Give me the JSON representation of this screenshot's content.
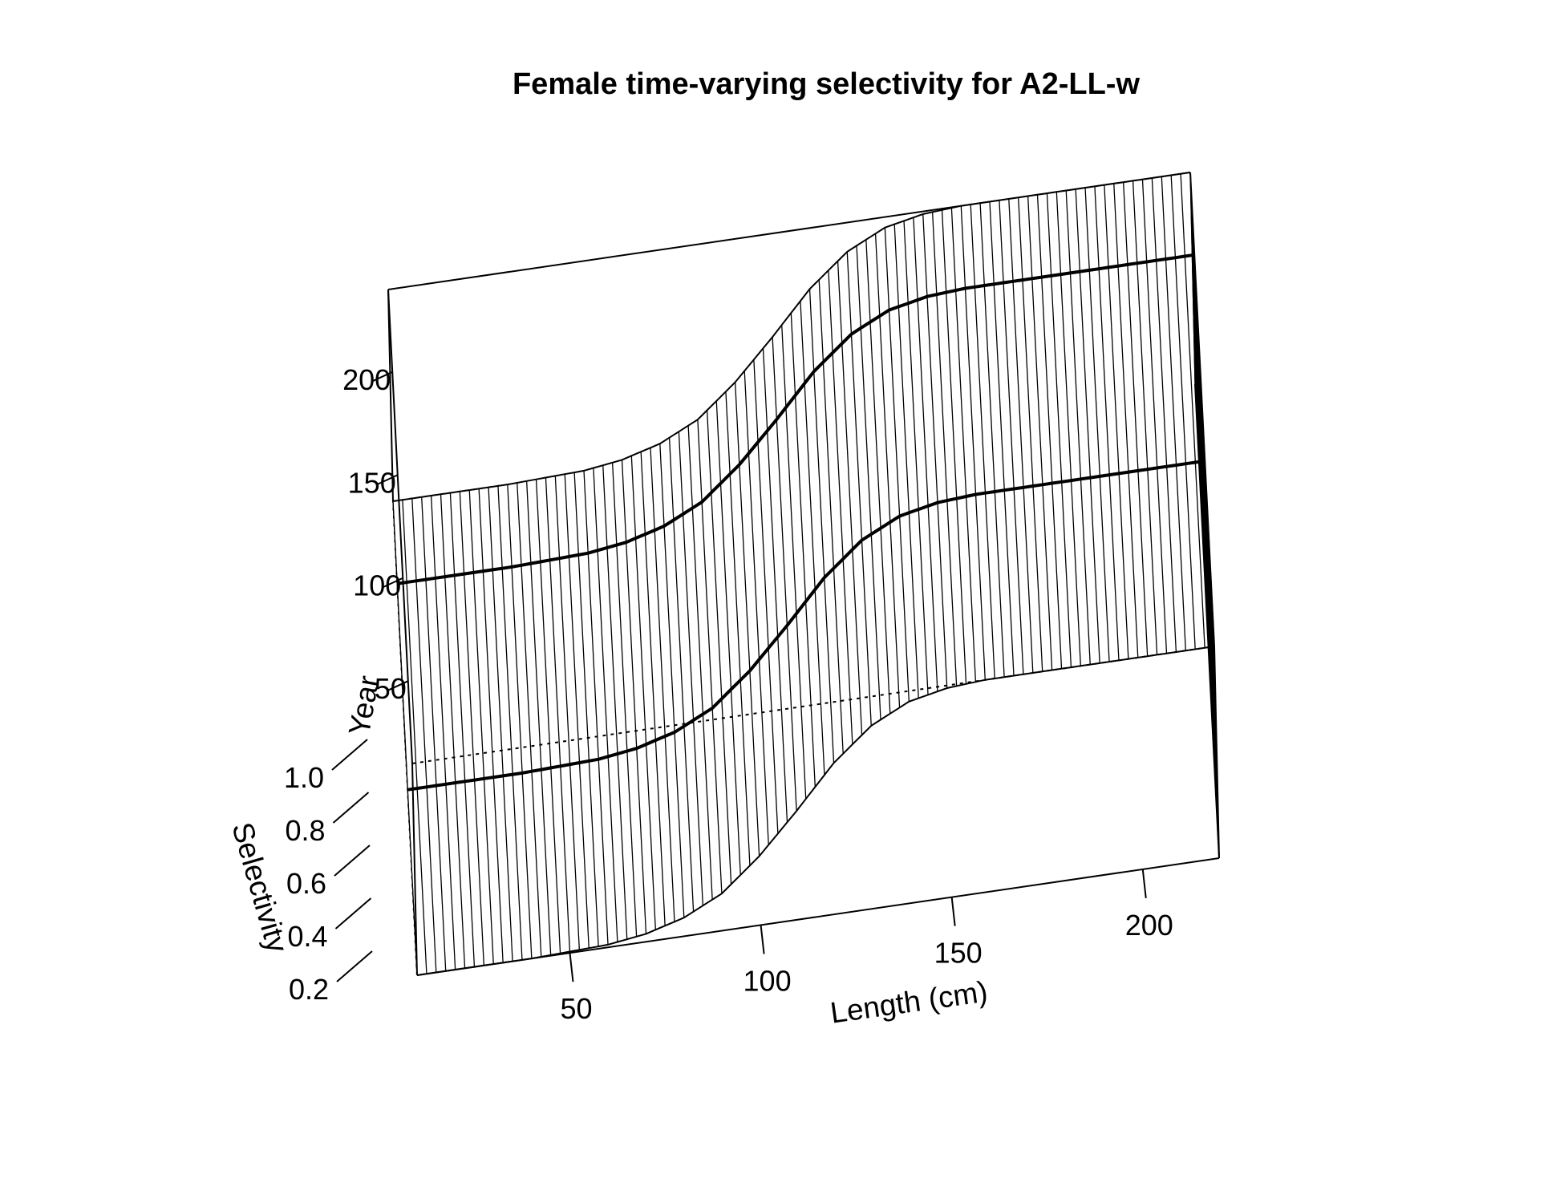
{
  "chart_data": {
    "type": "surface",
    "title": "Female time-varying selectivity for A2-LL-w",
    "xlabel": "Length (cm)",
    "ylabel": "Year",
    "zlabel": "Selectivity",
    "xlim": [
      10,
      220
    ],
    "ylim": [
      10,
      240
    ],
    "zlim": [
      0.2,
      1.0
    ],
    "x_ticks": [
      "50",
      "100",
      "150",
      "200"
    ],
    "y_ticks": [
      "50",
      "100",
      "150",
      "200"
    ],
    "z_ticks": [
      "0.2",
      "0.4",
      "0.6",
      "0.8",
      "1.0"
    ],
    "selectivity_curve": {
      "description_of_shape": "logistic",
      "length": [
        10,
        40,
        60,
        70,
        80,
        90,
        100,
        110,
        120,
        130,
        140,
        150,
        160,
        170,
        180,
        190,
        200,
        210,
        220
      ],
      "selectivity": [
        0.2,
        0.2,
        0.21,
        0.23,
        0.27,
        0.34,
        0.46,
        0.61,
        0.77,
        0.89,
        0.96,
        0.99,
        1.0,
        1.0,
        1.0,
        1.0,
        1.0,
        1.0,
        1.0
      ]
    },
    "time_blocks": [
      {
        "from_year": 10,
        "to_year": 240,
        "max_length_plateau": 220
      }
    ],
    "highlighted_years": [
      100,
      200
    ],
    "grid": false,
    "legend": "none"
  }
}
